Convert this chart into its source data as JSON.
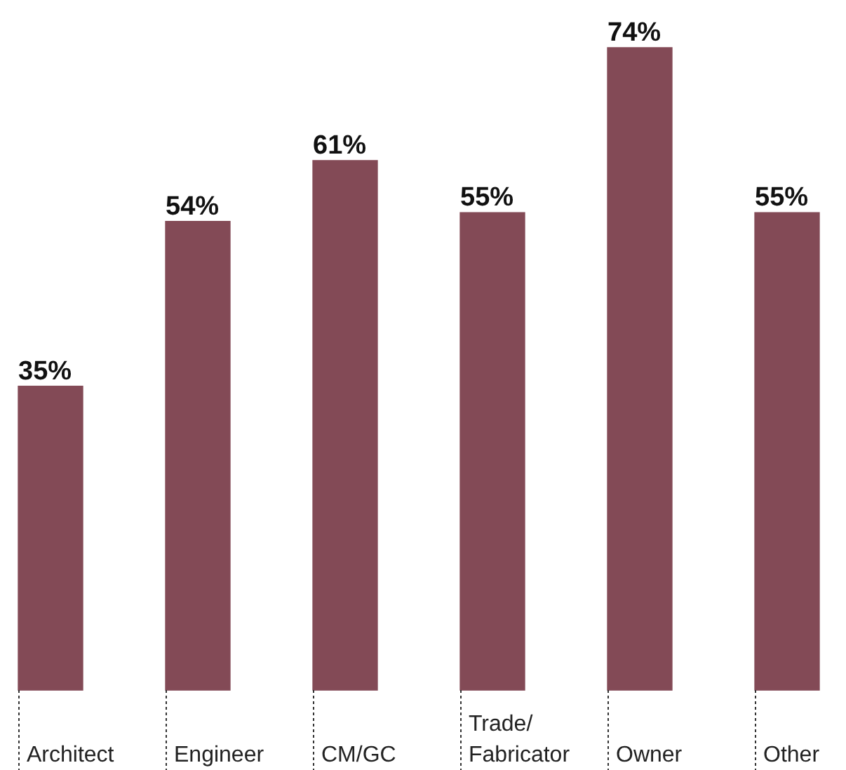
{
  "chart_data": {
    "type": "bar",
    "categories": [
      "Architect",
      "Engineer",
      "CM/GC",
      "Trade/Fabricator",
      "Owner",
      "Other"
    ],
    "values": [
      35,
      54,
      61,
      55,
      74,
      55
    ],
    "value_labels": [
      "35%",
      "54%",
      "61%",
      "55%",
      "74%",
      "55%"
    ],
    "color": "#834a56",
    "tick_labels": "x",
    "legend": false
  }
}
